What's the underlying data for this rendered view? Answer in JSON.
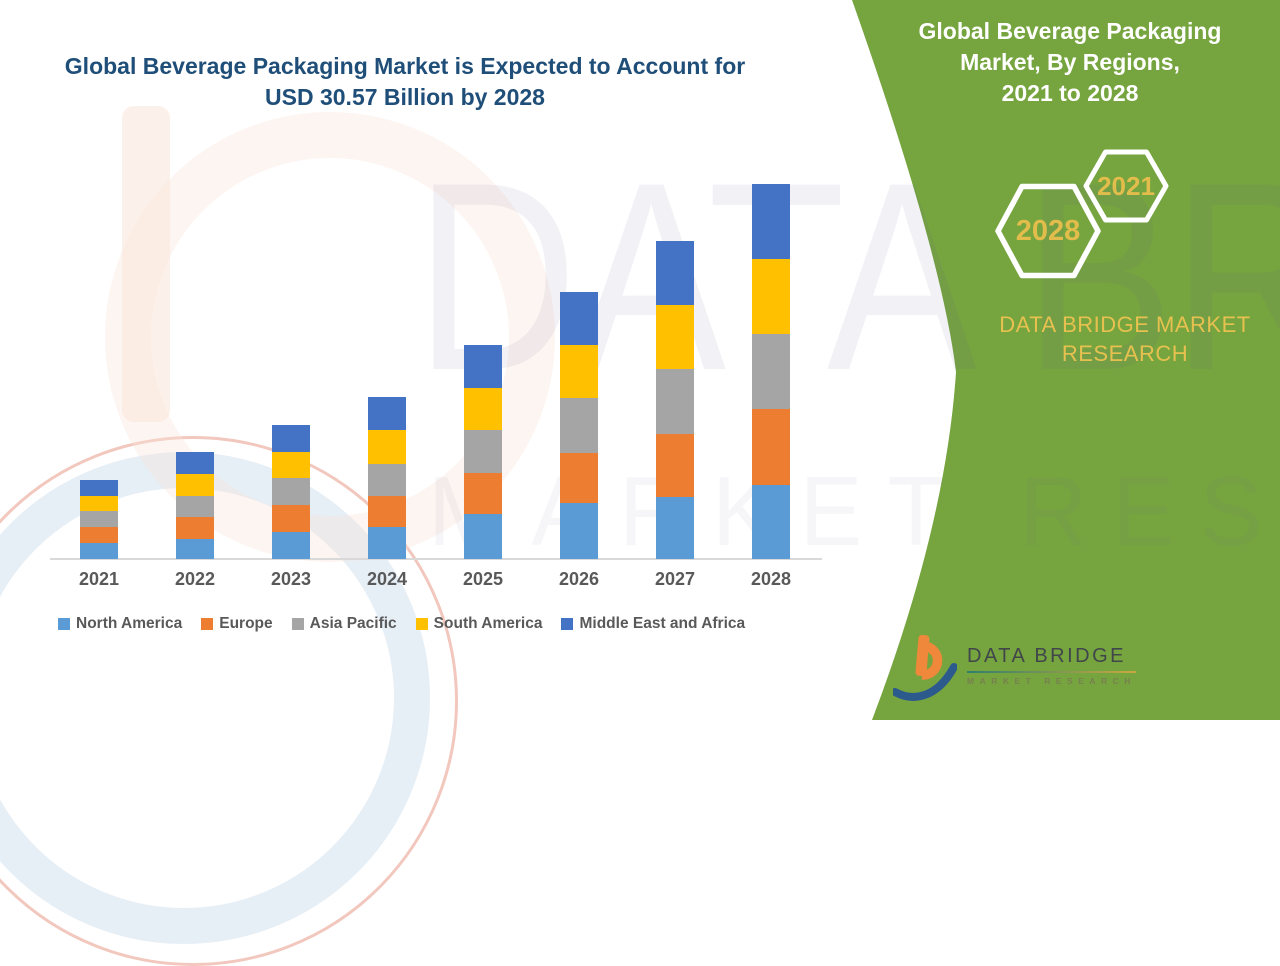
{
  "main_title": {
    "line1": "Global Beverage Packaging Market is Expected to Account for",
    "line2": "USD 30.57 Billion by 2028"
  },
  "side_panel": {
    "background_color": "#76A43F",
    "title_lines": [
      "Global Beverage Packaging",
      "Market, By Regions,",
      "2021 to 2028"
    ],
    "hexagon_badges": [
      {
        "label": "2028"
      },
      {
        "label": "2021"
      }
    ],
    "brand_lines": [
      "DATA BRIDGE MARKET",
      "RESEARCH"
    ],
    "gold_color": "#E7C14F"
  },
  "watermark": {
    "line1": "DATA BRIDGE",
    "line2": "MARKET RESEARCH"
  },
  "footer_logo": {
    "name": "DATA BRIDGE",
    "tagline": "MARKET RESEARCH",
    "orange": "#F0883B",
    "blue": "#2C5A8C"
  },
  "chart_data": {
    "type": "bar",
    "stacked": true,
    "title": "Global Beverage Packaging Market is Expected to Account for USD 30.57 Billion by 2028",
    "unit": "USD Billion",
    "categories": [
      "2021",
      "2022",
      "2023",
      "2024",
      "2025",
      "2026",
      "2027",
      "2028"
    ],
    "series": [
      {
        "name": "North America",
        "color": "#5B9BD5",
        "values": [
          1.27,
          1.63,
          2.22,
          2.58,
          3.67,
          4.54,
          5.09,
          6.07
        ]
      },
      {
        "name": "Europe",
        "color": "#ED7D31",
        "values": [
          1.36,
          1.82,
          2.18,
          2.55,
          3.32,
          4.12,
          5.12,
          6.17
        ]
      },
      {
        "name": "Asia Pacific",
        "color": "#A5A5A5",
        "values": [
          1.3,
          1.71,
          2.18,
          2.61,
          3.53,
          4.43,
          5.27,
          6.11
        ]
      },
      {
        "name": "South America",
        "color": "#FFC000",
        "values": [
          1.22,
          1.77,
          2.17,
          2.77,
          3.4,
          4.34,
          5.24,
          6.11
        ]
      },
      {
        "name": "Middle East and Africa",
        "color": "#4472C4",
        "values": [
          1.28,
          1.76,
          2.18,
          2.66,
          3.53,
          4.32,
          5.17,
          6.11
        ]
      }
    ],
    "totals": [
      6.43,
      8.69,
      10.93,
      13.17,
      17.45,
      21.75,
      25.89,
      30.57
    ],
    "ylim": [
      0,
      32
    ],
    "xlabel": "",
    "ylabel": "",
    "gridlines": false,
    "y_axis_visible": false,
    "legend_position": "bottom"
  }
}
